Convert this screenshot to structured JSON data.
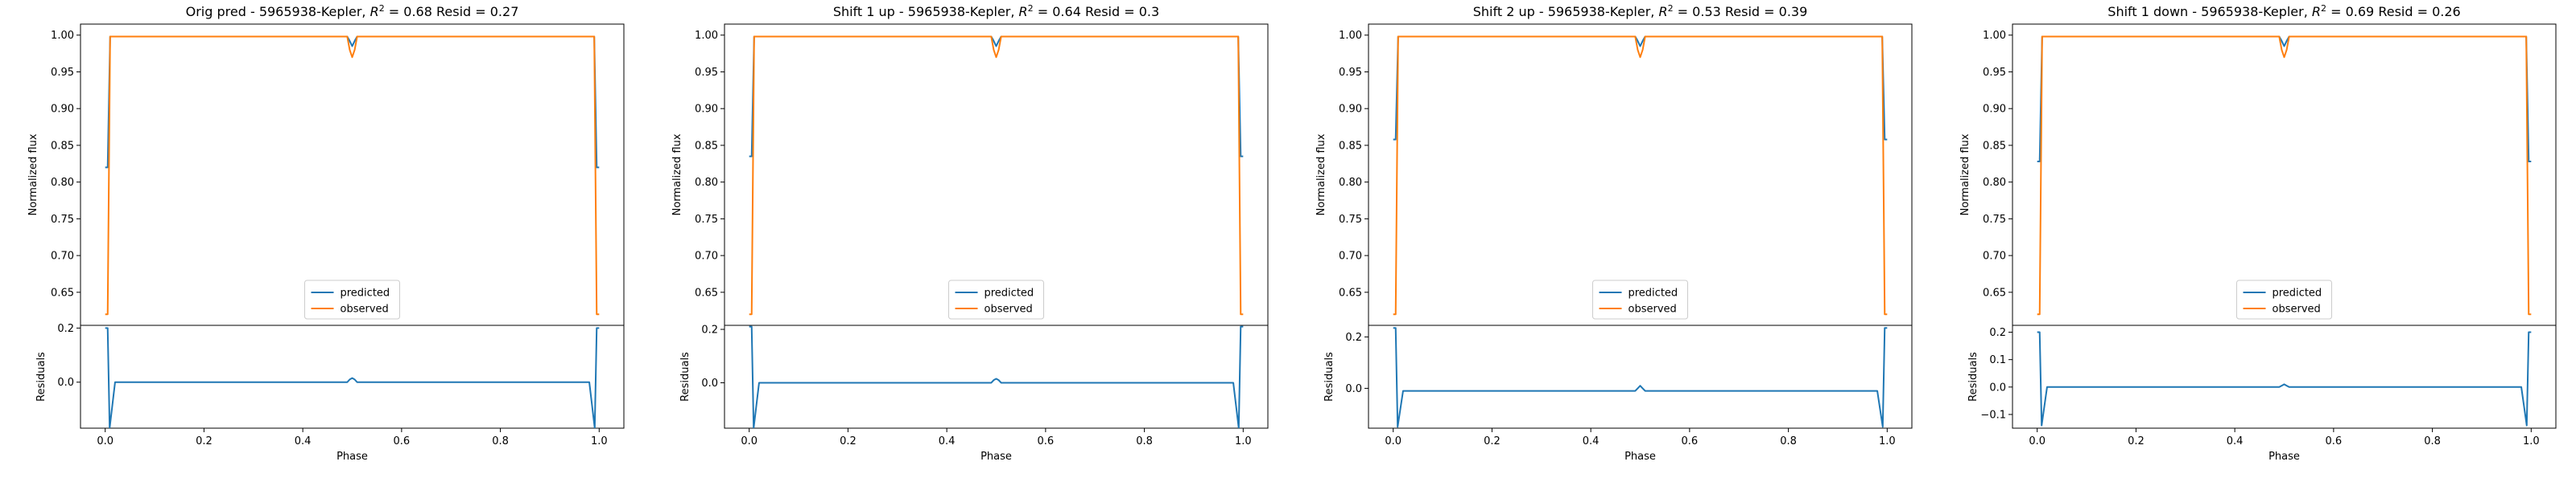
{
  "colors": {
    "predicted": "#1f77b4",
    "observed": "#ff7f0e"
  },
  "chart_data": [
    {
      "type": "line",
      "title": "Orig pred - 5965938-Kepler, $R^2 = 0.68$ Resid = 0.27",
      "xlabel": "Phase",
      "ylabel_top": "Normalized flux",
      "ylabel_bottom": "Residuals",
      "xlim": [
        -0.05,
        1.05
      ],
      "xticks": [
        0.0,
        0.2,
        0.4,
        0.6,
        0.8,
        1.0
      ],
      "xtick_labels": [
        "0.0",
        "0.2",
        "0.4",
        "0.6",
        "0.8",
        "1.0"
      ],
      "top_ylim": [
        0.605,
        1.015
      ],
      "top_yticks": [
        0.65,
        0.7,
        0.75,
        0.8,
        0.85,
        0.9,
        0.95,
        1.0
      ],
      "top_ytick_labels": [
        "0.65",
        "0.70",
        "0.75",
        "0.80",
        "0.85",
        "0.90",
        "0.95",
        "1.00"
      ],
      "bottom_ylim": [
        -0.17,
        0.21
      ],
      "bottom_yticks": [
        0.0,
        0.2
      ],
      "bottom_ytick_labels": [
        "0.0",
        "0.2"
      ],
      "legend": {
        "placement": "lower center",
        "entries": [
          "predicted",
          "observed"
        ]
      },
      "series": [
        {
          "name": "predicted",
          "x": [
            0.0,
            0.005,
            0.01,
            0.02,
            0.49,
            0.495,
            0.5,
            0.505,
            0.51,
            0.98,
            0.99,
            0.995,
            1.0
          ],
          "y": [
            0.82,
            0.82,
            0.998,
            0.998,
            0.998,
            0.992,
            0.985,
            0.992,
            0.998,
            0.998,
            0.998,
            0.82,
            0.82
          ]
        },
        {
          "name": "observed",
          "x": [
            0.0,
            0.005,
            0.01,
            0.02,
            0.49,
            0.495,
            0.5,
            0.505,
            0.51,
            0.98,
            0.99,
            0.995,
            1.0
          ],
          "y": [
            0.62,
            0.62,
            0.998,
            0.998,
            0.998,
            0.98,
            0.97,
            0.98,
            0.998,
            0.998,
            0.998,
            0.62,
            0.62
          ]
        }
      ],
      "residuals": {
        "name": "residuals",
        "x": [
          0.0,
          0.005,
          0.009,
          0.02,
          0.49,
          0.495,
          0.5,
          0.505,
          0.51,
          0.98,
          0.991,
          0.995,
          1.0
        ],
        "y": [
          0.2,
          0.2,
          -0.17,
          0.0,
          0.0,
          0.01,
          0.015,
          0.01,
          0.0,
          0.0,
          -0.17,
          0.2,
          0.2
        ]
      }
    },
    {
      "type": "line",
      "title": "Shift 1 up - 5965938-Kepler, $R^2 = 0.64$ Resid = 0.3",
      "xlabel": "Phase",
      "ylabel_top": "Normalized flux",
      "ylabel_bottom": "Residuals",
      "xlim": [
        -0.05,
        1.05
      ],
      "xticks": [
        0.0,
        0.2,
        0.4,
        0.6,
        0.8,
        1.0
      ],
      "xtick_labels": [
        "0.0",
        "0.2",
        "0.4",
        "0.6",
        "0.8",
        "1.0"
      ],
      "top_ylim": [
        0.605,
        1.015
      ],
      "top_yticks": [
        0.65,
        0.7,
        0.75,
        0.8,
        0.85,
        0.9,
        0.95,
        1.0
      ],
      "top_ytick_labels": [
        "0.65",
        "0.70",
        "0.75",
        "0.80",
        "0.85",
        "0.90",
        "0.95",
        "1.00"
      ],
      "bottom_ylim": [
        -0.17,
        0.215
      ],
      "bottom_yticks": [
        0.0,
        0.2
      ],
      "bottom_ytick_labels": [
        "0.0",
        "0.2"
      ],
      "legend": {
        "placement": "lower center",
        "entries": [
          "predicted",
          "observed"
        ]
      },
      "series": [
        {
          "name": "predicted",
          "x": [
            0.0,
            0.005,
            0.01,
            0.02,
            0.49,
            0.495,
            0.5,
            0.505,
            0.51,
            0.98,
            0.99,
            0.995,
            1.0
          ],
          "y": [
            0.835,
            0.835,
            0.998,
            0.998,
            0.998,
            0.992,
            0.985,
            0.992,
            0.998,
            0.998,
            0.998,
            0.835,
            0.835
          ]
        },
        {
          "name": "observed",
          "x": [
            0.0,
            0.005,
            0.01,
            0.02,
            0.49,
            0.495,
            0.5,
            0.505,
            0.51,
            0.98,
            0.99,
            0.995,
            1.0
          ],
          "y": [
            0.62,
            0.62,
            0.998,
            0.998,
            0.998,
            0.98,
            0.97,
            0.98,
            0.998,
            0.998,
            0.998,
            0.62,
            0.62
          ]
        }
      ],
      "residuals": {
        "name": "residuals",
        "x": [
          0.0,
          0.005,
          0.009,
          0.02,
          0.49,
          0.495,
          0.5,
          0.505,
          0.51,
          0.98,
          0.991,
          0.995,
          1.0
        ],
        "y": [
          0.21,
          0.21,
          -0.17,
          0.0,
          0.0,
          0.01,
          0.015,
          0.01,
          0.0,
          0.0,
          -0.17,
          0.21,
          0.21
        ]
      }
    },
    {
      "type": "line",
      "title": "Shift 2 up - 5965938-Kepler, $R^2 = 0.53$ Resid = 0.39",
      "xlabel": "Phase",
      "ylabel_top": "Normalized flux",
      "ylabel_bottom": "Residuals",
      "xlim": [
        -0.05,
        1.05
      ],
      "xticks": [
        0.0,
        0.2,
        0.4,
        0.6,
        0.8,
        1.0
      ],
      "xtick_labels": [
        "0.0",
        "0.2",
        "0.4",
        "0.6",
        "0.8",
        "1.0"
      ],
      "top_ylim": [
        0.605,
        1.015
      ],
      "top_yticks": [
        0.65,
        0.7,
        0.75,
        0.8,
        0.85,
        0.9,
        0.95,
        1.0
      ],
      "top_ytick_labels": [
        "0.65",
        "0.70",
        "0.75",
        "0.80",
        "0.85",
        "0.90",
        "0.95",
        "1.00"
      ],
      "bottom_ylim": [
        -0.155,
        0.245
      ],
      "bottom_yticks": [
        0.0,
        0.2
      ],
      "bottom_ytick_labels": [
        "0.0",
        "0.2"
      ],
      "legend": {
        "placement": "lower center",
        "entries": [
          "predicted",
          "observed"
        ]
      },
      "series": [
        {
          "name": "predicted",
          "x": [
            0.0,
            0.005,
            0.01,
            0.02,
            0.49,
            0.495,
            0.5,
            0.505,
            0.51,
            0.98,
            0.99,
            0.995,
            1.0
          ],
          "y": [
            0.858,
            0.858,
            0.998,
            0.998,
            0.998,
            0.992,
            0.985,
            0.992,
            0.998,
            0.998,
            0.998,
            0.858,
            0.858
          ]
        },
        {
          "name": "observed",
          "x": [
            0.0,
            0.005,
            0.01,
            0.02,
            0.49,
            0.495,
            0.5,
            0.505,
            0.51,
            0.98,
            0.99,
            0.995,
            1.0
          ],
          "y": [
            0.62,
            0.62,
            0.998,
            0.998,
            0.998,
            0.98,
            0.97,
            0.98,
            0.998,
            0.998,
            0.998,
            0.62,
            0.62
          ]
        }
      ],
      "residuals": {
        "name": "residuals",
        "x": [
          0.0,
          0.005,
          0.009,
          0.02,
          0.49,
          0.495,
          0.5,
          0.505,
          0.51,
          0.98,
          0.991,
          0.995,
          1.0
        ],
        "y": [
          0.235,
          0.235,
          -0.15,
          -0.01,
          -0.01,
          0.0,
          0.01,
          0.0,
          -0.01,
          -0.01,
          -0.15,
          0.235,
          0.235
        ]
      }
    },
    {
      "type": "line",
      "title": "Shift 1 down - 5965938-Kepler, $R^2 = 0.69$ Resid = 0.26",
      "xlabel": "Phase",
      "ylabel_top": "Normalized flux",
      "ylabel_bottom": "Residuals",
      "xlim": [
        -0.05,
        1.05
      ],
      "xticks": [
        0.0,
        0.2,
        0.4,
        0.6,
        0.8,
        1.0
      ],
      "xtick_labels": [
        "0.0",
        "0.2",
        "0.4",
        "0.6",
        "0.8",
        "1.0"
      ],
      "top_ylim": [
        0.605,
        1.015
      ],
      "top_yticks": [
        0.65,
        0.7,
        0.75,
        0.8,
        0.85,
        0.9,
        0.95,
        1.0
      ],
      "top_ytick_labels": [
        "0.65",
        "0.70",
        "0.75",
        "0.80",
        "0.85",
        "0.90",
        "0.95",
        "1.00"
      ],
      "bottom_ylim": [
        -0.15,
        0.225
      ],
      "bottom_yticks": [
        -0.1,
        0.0,
        0.1,
        0.2
      ],
      "bottom_ytick_labels": [
        "−0.1",
        "0.0",
        "0.1",
        "0.2"
      ],
      "legend": {
        "placement": "lower center",
        "entries": [
          "predicted",
          "observed"
        ]
      },
      "series": [
        {
          "name": "predicted",
          "x": [
            0.0,
            0.005,
            0.01,
            0.02,
            0.49,
            0.495,
            0.5,
            0.505,
            0.51,
            0.98,
            0.99,
            0.995,
            1.0
          ],
          "y": [
            0.828,
            0.828,
            0.998,
            0.998,
            0.998,
            0.992,
            0.985,
            0.992,
            0.998,
            0.998,
            0.998,
            0.828,
            0.828
          ]
        },
        {
          "name": "observed",
          "x": [
            0.0,
            0.005,
            0.01,
            0.02,
            0.49,
            0.495,
            0.5,
            0.505,
            0.51,
            0.98,
            0.99,
            0.995,
            1.0
          ],
          "y": [
            0.62,
            0.62,
            0.998,
            0.998,
            0.998,
            0.98,
            0.97,
            0.98,
            0.998,
            0.998,
            0.998,
            0.62,
            0.62
          ]
        }
      ],
      "residuals": {
        "name": "residuals",
        "x": [
          0.0,
          0.005,
          0.009,
          0.02,
          0.49,
          0.495,
          0.5,
          0.505,
          0.51,
          0.98,
          0.991,
          0.995,
          1.0
        ],
        "y": [
          0.2,
          0.2,
          -0.14,
          0.0,
          0.0,
          0.005,
          0.01,
          0.005,
          0.0,
          0.0,
          -0.14,
          0.2,
          0.2
        ]
      }
    }
  ]
}
